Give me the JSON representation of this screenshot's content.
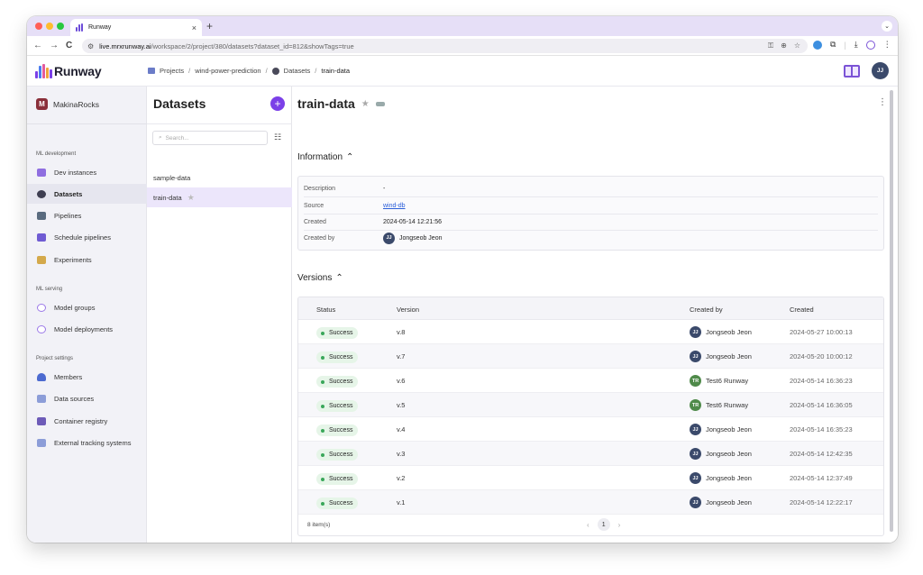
{
  "browser": {
    "tab_title": "Runway",
    "tab_close": "×",
    "new_tab": "+",
    "tabs_menu": "⌄",
    "back": "←",
    "forward": "→",
    "reload": "C",
    "url_host": "live.mrxrunway.ai",
    "url_path": "/workspace/2/project/380/datasets?dataset_id=812&showTags=true",
    "omni_icons": [
      "key-icon",
      "zoom-icon",
      "star-icon"
    ],
    "extension_icons": [
      "extension-icon",
      "puzzle-icon",
      "download-icon",
      "profile-icon",
      "menu-icon"
    ]
  },
  "header": {
    "logo_text": "Runway",
    "logo_colors": [
      "#7b40e8",
      "#4a7cf0",
      "#e25b9e",
      "#f0a43c"
    ],
    "breadcrumb": {
      "projects": "Projects",
      "project": "wind-power-prediction",
      "section": "Datasets",
      "current": "train-data",
      "sep": "/"
    },
    "avatar_initials": "JJ"
  },
  "sidebar": {
    "workspace_initial": "M",
    "workspace_name": "MakinaRocks",
    "sections": [
      {
        "title": "ML development",
        "items": [
          {
            "label": "Dev instances",
            "icon": "monitor-icon",
            "color": "#8f6ee0"
          },
          {
            "label": "Datasets",
            "icon": "dataset-icon",
            "color": "#3f3f52",
            "active": true
          },
          {
            "label": "Pipelines",
            "icon": "pipeline-icon",
            "color": "#5a6b7f"
          },
          {
            "label": "Schedule pipelines",
            "icon": "schedule-icon",
            "color": "#6f5bd3"
          },
          {
            "label": "Experiments",
            "icon": "chart-icon",
            "color": "#d4a94b"
          }
        ]
      },
      {
        "title": "ML serving",
        "items": [
          {
            "label": "Model groups",
            "icon": "model-group-icon",
            "color": "#9b78e8"
          },
          {
            "label": "Model deployments",
            "icon": "deploy-icon",
            "color": "#9b78e8"
          }
        ]
      },
      {
        "title": "Project settings",
        "items": [
          {
            "label": "Members",
            "icon": "members-icon",
            "color": "#4c6ad0"
          },
          {
            "label": "Data sources",
            "icon": "data-source-icon",
            "color": "#8c9dd8"
          },
          {
            "label": "Container registry",
            "icon": "registry-icon",
            "color": "#6d5bb8"
          },
          {
            "label": "External tracking systems",
            "icon": "tracking-icon",
            "color": "#8c9dd8"
          }
        ]
      }
    ]
  },
  "datasets_panel": {
    "title": "Datasets",
    "add": "+",
    "search_placeholder": "Search...",
    "items": [
      {
        "name": "sample-data",
        "starred": false
      },
      {
        "name": "train-data",
        "starred": true,
        "active": true
      }
    ]
  },
  "detail": {
    "title": "train-data",
    "information_heading": "Information",
    "information": [
      {
        "key": "Description",
        "value": "-"
      },
      {
        "key": "Source",
        "value": "wind-db",
        "link": true
      },
      {
        "key": "Created",
        "value": "2024-05-14 12:21:56"
      },
      {
        "key": "Created by",
        "value": "Jongseob Jeon",
        "initials": "JJ",
        "avatar_color": "#3b4a6b"
      }
    ],
    "versions_heading": "Versions",
    "columns": [
      "Status",
      "Version",
      "Created by",
      "Created"
    ],
    "versions": [
      {
        "status": "Success",
        "version": "v.8",
        "user": "Jongseob Jeon",
        "initials": "JJ",
        "avatar_color": "#3b4a6b",
        "created": "2024-05-27 10:00:13"
      },
      {
        "status": "Success",
        "version": "v.7",
        "user": "Jongseob Jeon",
        "initials": "JJ",
        "avatar_color": "#3b4a6b",
        "created": "2024-05-20 10:00:12"
      },
      {
        "status": "Success",
        "version": "v.6",
        "user": "Test6 Runway",
        "initials": "TR",
        "avatar_color": "#4f8a4a",
        "created": "2024-05-14 16:36:23"
      },
      {
        "status": "Success",
        "version": "v.5",
        "user": "Test6 Runway",
        "initials": "TR",
        "avatar_color": "#4f8a4a",
        "created": "2024-05-14 16:36:05"
      },
      {
        "status": "Success",
        "version": "v.4",
        "user": "Jongseob Jeon",
        "initials": "JJ",
        "avatar_color": "#3b4a6b",
        "created": "2024-05-14 16:35:23"
      },
      {
        "status": "Success",
        "version": "v.3",
        "user": "Jongseob Jeon",
        "initials": "JJ",
        "avatar_color": "#3b4a6b",
        "created": "2024-05-14 12:42:35"
      },
      {
        "status": "Success",
        "version": "v.2",
        "user": "Jongseob Jeon",
        "initials": "JJ",
        "avatar_color": "#3b4a6b",
        "created": "2024-05-14 12:37:49"
      },
      {
        "status": "Success",
        "version": "v.1",
        "user": "Jongseob Jeon",
        "initials": "JJ",
        "avatar_color": "#3b4a6b",
        "created": "2024-05-14 12:22:17"
      }
    ],
    "item_count": "8 item(s)",
    "current_page": "1",
    "prev": "‹",
    "next": "›"
  }
}
